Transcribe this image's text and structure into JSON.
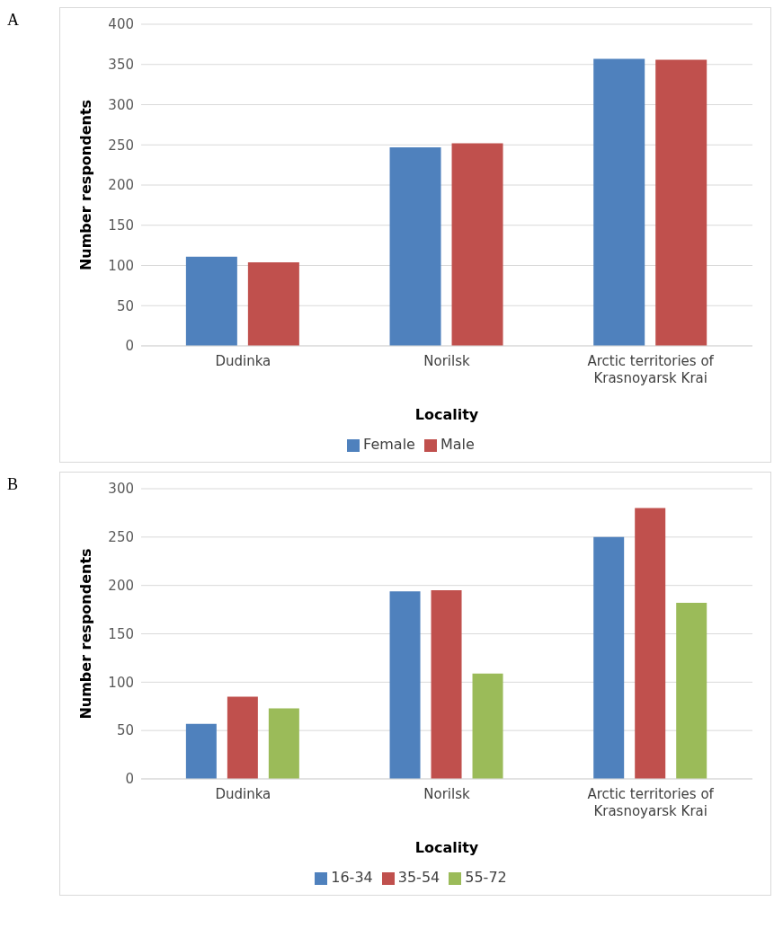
{
  "chart_data": [
    {
      "type": "bar",
      "title": "A",
      "xlabel": "Locality",
      "ylabel": "Number respondents",
      "categories": [
        "Dudinka",
        "Norilsk",
        "Arctic territories of Krasnoyarsk Krai"
      ],
      "series": [
        {
          "name": "Female",
          "color": "#4f81bd",
          "values": [
            111,
            247,
            357
          ]
        },
        {
          "name": "Male",
          "color": "#c0504d",
          "values": [
            104,
            252,
            356
          ]
        }
      ],
      "ylim": [
        0,
        400
      ],
      "yticks": [
        0,
        50,
        100,
        150,
        200,
        250,
        300,
        350,
        400
      ],
      "grid": "y",
      "legend": "bottom"
    },
    {
      "type": "bar",
      "title": "B",
      "xlabel": "Locality",
      "ylabel": "Number respondents",
      "categories": [
        "Dudinka",
        "Norilsk",
        "Arctic territories of Krasnoyarsk Krai"
      ],
      "series": [
        {
          "name": "16-34",
          "color": "#4f81bd",
          "values": [
            57,
            194,
            250
          ]
        },
        {
          "name": "35-54",
          "color": "#c0504d",
          "values": [
            85,
            195,
            280
          ]
        },
        {
          "name": "55-72",
          "color": "#9bbb59",
          "values": [
            73,
            109,
            182
          ]
        }
      ],
      "ylim": [
        0,
        300
      ],
      "yticks": [
        0,
        50,
        100,
        150,
        200,
        250,
        300
      ],
      "grid": "y",
      "legend": "bottom"
    }
  ]
}
